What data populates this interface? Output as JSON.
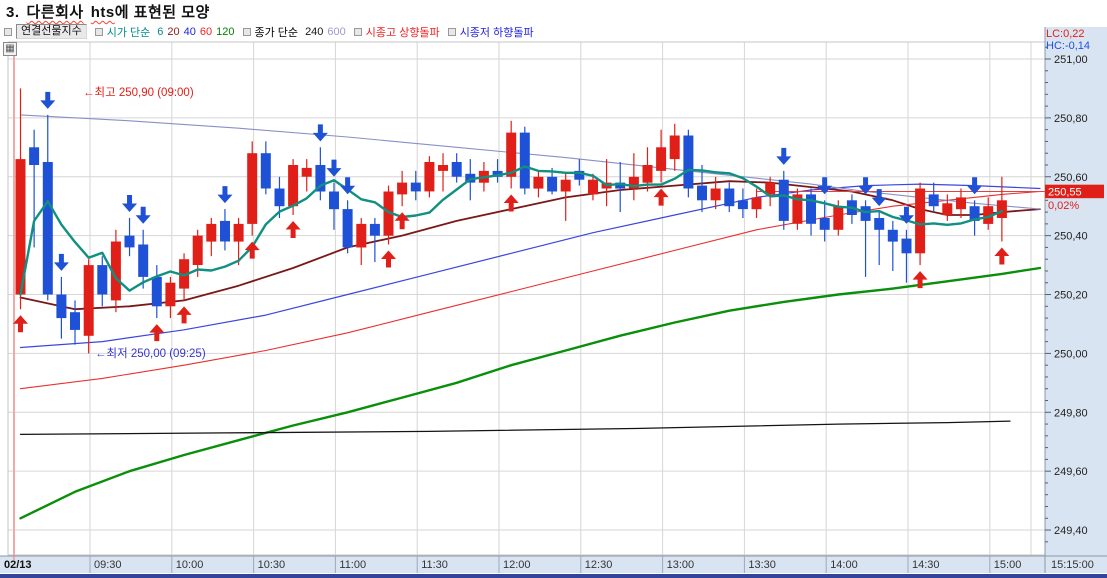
{
  "title": {
    "num": "3.",
    "word1": "다른회사",
    "word2": "hts",
    "rest": "에 표현된 모양"
  },
  "legend": {
    "symbol": "연결선물지수",
    "open_ma_label": "시가 단순",
    "open_ma_periods": [
      {
        "label": "6",
        "color": "#008b8b"
      },
      {
        "label": "20",
        "color": "#8b1a1a"
      },
      {
        "label": "40",
        "color": "#2222e6"
      },
      {
        "label": "60",
        "color": "#ee2222"
      },
      {
        "label": "120",
        "color": "#008000"
      }
    ],
    "close_ma_label": "종가 단순",
    "close_ma_periods": [
      {
        "label": "240",
        "color": "#161616"
      },
      {
        "label": "600",
        "color": "#9a9ace"
      }
    ],
    "signal_up_label": "시종고 상향돌파",
    "signal_up_color": "#ee2222",
    "signal_down_label": "시종저 하향돌파",
    "signal_down_color": "#2222e6"
  },
  "header_right": {
    "lc": "LC:0,22",
    "hc": "HC:-0,14"
  },
  "price_axis": {
    "labels": [
      "251,00",
      "250,80",
      "250,60",
      "250,40",
      "250,20",
      "250,00",
      "249,80",
      "249,60",
      "249,40"
    ],
    "values": [
      251.0,
      250.8,
      250.6,
      250.4,
      250.2,
      250.0,
      249.8,
      249.6,
      249.4
    ],
    "minor_step": 0.04,
    "current": {
      "label": "250,55",
      "value": 250.55,
      "pct": "0,02%"
    }
  },
  "time_axis": {
    "date": "02/13",
    "labels": [
      "09:30",
      "10:00",
      "10:30",
      "11:00",
      "11:30",
      "12:00",
      "12:30",
      "13:00",
      "13:30",
      "14:00",
      "14:30",
      "15:00"
    ],
    "end_label": "15:15:00"
  },
  "annotations": {
    "high": {
      "text": "←최고 250,90 (09:00)",
      "value": 250.9,
      "color": "#e02018"
    },
    "low": {
      "text": "←최저 250,00 (09:25)",
      "value": 250.0,
      "color": "#3535cc"
    }
  },
  "colors": {
    "up": "#e02018",
    "down": "#1f51d6",
    "panel_bg": "#d9e4f2",
    "grid": "#d6d6d6",
    "axis_border": "#8d99a8",
    "session_line": "#f0a8a8",
    "marker_bg": "#e02018",
    "marker_text": "#ffffff",
    "bottom_strip": "#33449c",
    "price_line": "#e84040",
    "ma6": "#0f9080",
    "ma20": "#7a1818",
    "ma40": "#3c46dc",
    "ma60": "#e83030",
    "ma120": "#0a8f0a",
    "ma240": "#141414",
    "ma600": "#8890c8"
  },
  "chart_data": {
    "type": "candlestick",
    "interval_min": 5,
    "title": "연결선물지수 5분봉",
    "ylim": [
      249.315,
      251.06
    ],
    "day_high": {
      "value": 250.9,
      "time": "09:00"
    },
    "day_low": {
      "value": 250.0,
      "time": "09:25"
    },
    "last": 250.55,
    "candles": [
      {
        "t": "09:00",
        "o": 250.2,
        "h": 250.9,
        "l": 250.15,
        "c": 250.66,
        "sig": "up"
      },
      {
        "t": "09:05",
        "o": 250.7,
        "h": 250.76,
        "l": 250.36,
        "c": 250.64
      },
      {
        "t": "09:10",
        "o": 250.65,
        "h": 250.81,
        "l": 250.18,
        "c": 250.2,
        "sig": "down"
      },
      {
        "t": "09:15",
        "o": 250.2,
        "h": 250.26,
        "l": 250.05,
        "c": 250.12,
        "sig": "down"
      },
      {
        "t": "09:20",
        "o": 250.14,
        "h": 250.18,
        "l": 250.03,
        "c": 250.08
      },
      {
        "t": "09:25",
        "o": 250.06,
        "h": 250.32,
        "l": 250.0,
        "c": 250.3
      },
      {
        "t": "09:30",
        "o": 250.3,
        "h": 250.33,
        "l": 250.16,
        "c": 250.2
      },
      {
        "t": "09:35",
        "o": 250.18,
        "h": 250.42,
        "l": 250.14,
        "c": 250.38
      },
      {
        "t": "09:40",
        "o": 250.4,
        "h": 250.46,
        "l": 250.33,
        "c": 250.36,
        "sig": "down"
      },
      {
        "t": "09:45",
        "o": 250.37,
        "h": 250.42,
        "l": 250.22,
        "c": 250.26,
        "sig": "down"
      },
      {
        "t": "09:50",
        "o": 250.26,
        "h": 250.3,
        "l": 250.12,
        "c": 250.16,
        "sig": "up"
      },
      {
        "t": "09:55",
        "o": 250.16,
        "h": 250.26,
        "l": 250.12,
        "c": 250.24
      },
      {
        "t": "10:00",
        "o": 250.22,
        "h": 250.34,
        "l": 250.18,
        "c": 250.32,
        "sig": "up"
      },
      {
        "t": "10:05",
        "o": 250.3,
        "h": 250.42,
        "l": 250.26,
        "c": 250.4
      },
      {
        "t": "10:10",
        "o": 250.38,
        "h": 250.46,
        "l": 250.33,
        "c": 250.44
      },
      {
        "t": "10:15",
        "o": 250.45,
        "h": 250.49,
        "l": 250.35,
        "c": 250.38,
        "sig": "down"
      },
      {
        "t": "10:20",
        "o": 250.38,
        "h": 250.46,
        "l": 250.3,
        "c": 250.44
      },
      {
        "t": "10:25",
        "o": 250.44,
        "h": 250.72,
        "l": 250.4,
        "c": 250.68,
        "sig": "up"
      },
      {
        "t": "10:30",
        "o": 250.68,
        "h": 250.72,
        "l": 250.54,
        "c": 250.56
      },
      {
        "t": "10:35",
        "o": 250.56,
        "h": 250.6,
        "l": 250.46,
        "c": 250.5
      },
      {
        "t": "10:40",
        "o": 250.5,
        "h": 250.66,
        "l": 250.47,
        "c": 250.64,
        "sig": "up"
      },
      {
        "t": "10:45",
        "o": 250.6,
        "h": 250.66,
        "l": 250.55,
        "c": 250.63
      },
      {
        "t": "10:50",
        "o": 250.64,
        "h": 250.7,
        "l": 250.52,
        "c": 250.55,
        "sig": "down"
      },
      {
        "t": "10:55",
        "o": 250.55,
        "h": 250.58,
        "l": 250.42,
        "c": 250.49,
        "sig": "down"
      },
      {
        "t": "11:00",
        "o": 250.49,
        "h": 250.52,
        "l": 250.34,
        "c": 250.36,
        "sig": "down"
      },
      {
        "t": "11:05",
        "o": 250.36,
        "h": 250.46,
        "l": 250.3,
        "c": 250.44
      },
      {
        "t": "11:10",
        "o": 250.44,
        "h": 250.46,
        "l": 250.31,
        "c": 250.4
      },
      {
        "t": "11:15",
        "o": 250.4,
        "h": 250.57,
        "l": 250.37,
        "c": 250.55,
        "sig": "up"
      },
      {
        "t": "11:20",
        "o": 250.54,
        "h": 250.62,
        "l": 250.5,
        "c": 250.58,
        "sig": "up"
      },
      {
        "t": "11:25",
        "o": 250.58,
        "h": 250.62,
        "l": 250.52,
        "c": 250.55
      },
      {
        "t": "11:30",
        "o": 250.55,
        "h": 250.67,
        "l": 250.53,
        "c": 250.65
      },
      {
        "t": "11:35",
        "o": 250.62,
        "h": 250.68,
        "l": 250.55,
        "c": 250.64
      },
      {
        "t": "11:40",
        "o": 250.65,
        "h": 250.68,
        "l": 250.58,
        "c": 250.6
      },
      {
        "t": "11:45",
        "o": 250.61,
        "h": 250.66,
        "l": 250.52,
        "c": 250.58
      },
      {
        "t": "11:50",
        "o": 250.58,
        "h": 250.65,
        "l": 250.55,
        "c": 250.62
      },
      {
        "t": "11:55",
        "o": 250.62,
        "h": 250.66,
        "l": 250.58,
        "c": 250.6
      },
      {
        "t": "12:00",
        "o": 250.6,
        "h": 250.79,
        "l": 250.56,
        "c": 250.75,
        "sig": "up"
      },
      {
        "t": "12:05",
        "o": 250.75,
        "h": 250.77,
        "l": 250.54,
        "c": 250.56
      },
      {
        "t": "12:10",
        "o": 250.56,
        "h": 250.62,
        "l": 250.53,
        "c": 250.6
      },
      {
        "t": "12:15",
        "o": 250.6,
        "h": 250.63,
        "l": 250.54,
        "c": 250.55
      },
      {
        "t": "12:20",
        "o": 250.55,
        "h": 250.61,
        "l": 250.45,
        "c": 250.59
      },
      {
        "t": "12:25",
        "o": 250.62,
        "h": 250.66,
        "l": 250.57,
        "c": 250.59
      },
      {
        "t": "12:30",
        "o": 250.54,
        "h": 250.61,
        "l": 250.52,
        "c": 250.59
      },
      {
        "t": "12:35",
        "o": 250.56,
        "h": 250.66,
        "l": 250.5,
        "c": 250.58
      },
      {
        "t": "12:40",
        "o": 250.58,
        "h": 250.65,
        "l": 250.48,
        "c": 250.56
      },
      {
        "t": "12:45",
        "o": 250.56,
        "h": 250.68,
        "l": 250.52,
        "c": 250.6
      },
      {
        "t": "12:50",
        "o": 250.58,
        "h": 250.7,
        "l": 250.55,
        "c": 250.64
      },
      {
        "t": "12:55",
        "o": 250.62,
        "h": 250.76,
        "l": 250.58,
        "c": 250.7,
        "sig": "up"
      },
      {
        "t": "13:00",
        "o": 250.66,
        "h": 250.78,
        "l": 250.62,
        "c": 250.74
      },
      {
        "t": "13:05",
        "o": 250.74,
        "h": 250.76,
        "l": 250.53,
        "c": 250.56
      },
      {
        "t": "13:10",
        "o": 250.57,
        "h": 250.64,
        "l": 250.48,
        "c": 250.52
      },
      {
        "t": "13:15",
        "o": 250.52,
        "h": 250.6,
        "l": 250.49,
        "c": 250.56
      },
      {
        "t": "13:20",
        "o": 250.56,
        "h": 250.58,
        "l": 250.48,
        "c": 250.5
      },
      {
        "t": "13:25",
        "o": 250.52,
        "h": 250.56,
        "l": 250.46,
        "c": 250.49
      },
      {
        "t": "13:30",
        "o": 250.49,
        "h": 250.56,
        "l": 250.46,
        "c": 250.53
      },
      {
        "t": "13:35",
        "o": 250.54,
        "h": 250.6,
        "l": 250.5,
        "c": 250.58
      },
      {
        "t": "13:40",
        "o": 250.59,
        "h": 250.62,
        "l": 250.42,
        "c": 250.45,
        "sig": "down"
      },
      {
        "t": "13:45",
        "o": 250.44,
        "h": 250.56,
        "l": 250.42,
        "c": 250.54
      },
      {
        "t": "13:50",
        "o": 250.54,
        "h": 250.56,
        "l": 250.4,
        "c": 250.44
      },
      {
        "t": "13:55",
        "o": 250.46,
        "h": 250.52,
        "l": 250.38,
        "c": 250.42,
        "sig": "down"
      },
      {
        "t": "14:00",
        "o": 250.42,
        "h": 250.52,
        "l": 250.4,
        "c": 250.5
      },
      {
        "t": "14:05",
        "o": 250.52,
        "h": 250.54,
        "l": 250.44,
        "c": 250.47
      },
      {
        "t": "14:10",
        "o": 250.5,
        "h": 250.52,
        "l": 250.26,
        "c": 250.45,
        "sig": "down"
      },
      {
        "t": "14:15",
        "o": 250.46,
        "h": 250.48,
        "l": 250.3,
        "c": 250.42,
        "sig": "down"
      },
      {
        "t": "14:20",
        "o": 250.42,
        "h": 250.45,
        "l": 250.28,
        "c": 250.38
      },
      {
        "t": "14:25",
        "o": 250.39,
        "h": 250.42,
        "l": 250.24,
        "c": 250.34,
        "sig": "down"
      },
      {
        "t": "14:30",
        "o": 250.34,
        "h": 250.58,
        "l": 250.3,
        "c": 250.56,
        "sig": "up"
      },
      {
        "t": "14:35",
        "o": 250.54,
        "h": 250.58,
        "l": 250.48,
        "c": 250.5
      },
      {
        "t": "14:40",
        "o": 250.47,
        "h": 250.54,
        "l": 250.45,
        "c": 250.51
      },
      {
        "t": "14:45",
        "o": 250.49,
        "h": 250.56,
        "l": 250.46,
        "c": 250.53
      },
      {
        "t": "14:50",
        "o": 250.5,
        "h": 250.52,
        "l": 250.4,
        "c": 250.45,
        "sig": "down"
      },
      {
        "t": "14:55",
        "o": 250.44,
        "h": 250.53,
        "l": 250.42,
        "c": 250.5
      },
      {
        "t": "15:00",
        "o": 250.46,
        "h": 250.6,
        "l": 250.38,
        "c": 250.52,
        "sig": "up"
      }
    ],
    "moving_averages": [
      {
        "name": "open-ma-6",
        "period": 6,
        "source": "open",
        "computed": true,
        "colorKey": "ma6",
        "width": 2.4
      },
      {
        "name": "open-ma-20",
        "colorKey": "ma20",
        "width": 1.8,
        "points": [
          [
            0,
            250.19
          ],
          [
            4,
            250.15
          ],
          [
            8,
            250.16
          ],
          [
            12,
            250.18
          ],
          [
            16,
            250.23
          ],
          [
            20,
            250.29
          ],
          [
            24,
            250.36
          ],
          [
            28,
            250.4
          ],
          [
            32,
            250.45
          ],
          [
            36,
            250.49
          ],
          [
            40,
            250.53
          ],
          [
            44,
            250.555
          ],
          [
            48,
            250.57
          ],
          [
            52,
            250.585
          ],
          [
            55,
            250.58
          ],
          [
            58,
            250.565
          ],
          [
            61,
            250.55
          ],
          [
            64,
            250.52
          ],
          [
            66,
            250.49
          ],
          [
            68,
            250.47
          ],
          [
            70,
            250.47
          ],
          [
            72,
            250.48
          ],
          [
            74.8,
            250.49
          ]
        ]
      },
      {
        "name": "open-ma-40",
        "colorKey": "ma40",
        "width": 1.2,
        "points": [
          [
            0,
            250.02
          ],
          [
            6,
            250.04
          ],
          [
            12,
            250.08
          ],
          [
            18,
            250.13
          ],
          [
            24,
            250.2
          ],
          [
            30,
            250.27
          ],
          [
            36,
            250.34
          ],
          [
            42,
            250.41
          ],
          [
            48,
            250.47
          ],
          [
            54,
            250.53
          ],
          [
            58,
            250.555
          ],
          [
            62,
            250.57
          ],
          [
            66,
            250.575
          ],
          [
            70,
            250.57
          ],
          [
            74.8,
            250.56
          ]
        ]
      },
      {
        "name": "open-ma-60",
        "colorKey": "ma60",
        "width": 1.1,
        "points": [
          [
            0,
            249.88
          ],
          [
            6,
            249.915
          ],
          [
            12,
            249.96
          ],
          [
            18,
            250.01
          ],
          [
            24,
            250.07
          ],
          [
            30,
            250.14
          ],
          [
            36,
            250.21
          ],
          [
            42,
            250.28
          ],
          [
            48,
            250.35
          ],
          [
            54,
            250.42
          ],
          [
            60,
            250.47
          ],
          [
            64,
            250.5
          ],
          [
            68,
            250.52
          ],
          [
            72,
            250.54
          ],
          [
            74.8,
            250.55
          ]
        ]
      },
      {
        "name": "open-ma-120",
        "colorKey": "ma120",
        "width": 2.4,
        "points": [
          [
            0,
            249.44
          ],
          [
            4,
            249.53
          ],
          [
            8,
            249.6
          ],
          [
            12,
            249.655
          ],
          [
            16,
            249.705
          ],
          [
            20,
            249.755
          ],
          [
            24,
            249.8
          ],
          [
            28,
            249.85
          ],
          [
            32,
            249.9
          ],
          [
            36,
            249.96
          ],
          [
            40,
            250.01
          ],
          [
            44,
            250.06
          ],
          [
            48,
            250.105
          ],
          [
            52,
            250.145
          ],
          [
            56,
            250.175
          ],
          [
            60,
            250.2
          ],
          [
            64,
            250.22
          ],
          [
            68,
            250.245
          ],
          [
            72,
            250.27
          ],
          [
            74.8,
            250.29
          ]
        ]
      },
      {
        "name": "close-ma-240",
        "colorKey": "ma240",
        "width": 1.3,
        "points": [
          [
            0,
            249.725
          ],
          [
            15,
            249.73
          ],
          [
            30,
            249.735
          ],
          [
            45,
            249.745
          ],
          [
            60,
            249.76
          ],
          [
            68,
            249.765
          ],
          [
            72.6,
            249.77
          ]
        ]
      },
      {
        "name": "close-ma-600",
        "colorKey": "ma600",
        "width": 1.1,
        "points": [
          [
            0,
            250.81
          ],
          [
            8,
            250.79
          ],
          [
            16,
            250.765
          ],
          [
            24,
            250.735
          ],
          [
            32,
            250.7
          ],
          [
            40,
            250.665
          ],
          [
            48,
            250.625
          ],
          [
            54,
            250.595
          ],
          [
            58,
            250.575
          ],
          [
            62,
            250.55
          ],
          [
            66,
            250.53
          ],
          [
            70,
            250.51
          ],
          [
            74.8,
            250.49
          ]
        ]
      }
    ]
  }
}
